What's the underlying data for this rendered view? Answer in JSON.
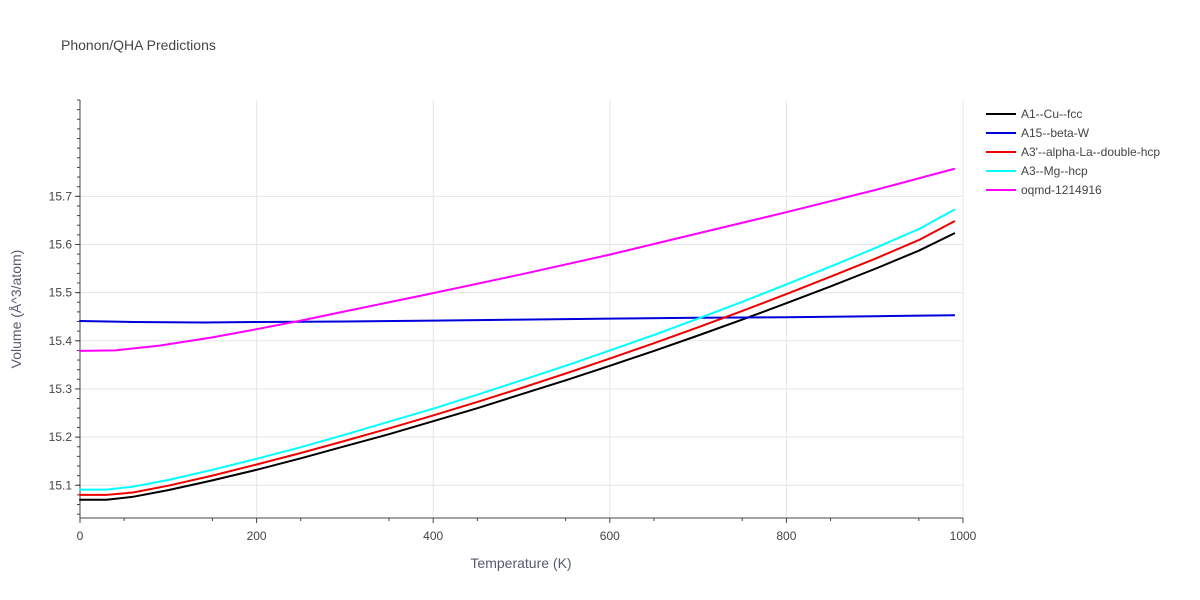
{
  "chart_data": {
    "type": "line",
    "title": "Phonon/QHA Predictions",
    "xlabel": "Temperature (K)",
    "ylabel": "Volume (Å^3/atom)",
    "xlim": [
      0,
      1000
    ],
    "ylim": [
      15.032,
      15.9
    ],
    "x_ticks": [
      0,
      200,
      400,
      600,
      800,
      1000
    ],
    "y_ticks": [
      15.1,
      15.2,
      15.3,
      15.4,
      15.5,
      15.6,
      15.7
    ],
    "grid": true,
    "legend_position": "top-right",
    "series": [
      {
        "name": "A1--Cu--fcc",
        "color": "#000000",
        "x": [
          0,
          30,
          60,
          100,
          150,
          200,
          250,
          300,
          350,
          400,
          450,
          500,
          550,
          600,
          650,
          700,
          750,
          800,
          850,
          900,
          950,
          990
        ],
        "y": [
          15.07,
          15.07,
          15.076,
          15.09,
          15.11,
          15.132,
          15.156,
          15.181,
          15.206,
          15.233,
          15.26,
          15.289,
          15.318,
          15.348,
          15.379,
          15.411,
          15.444,
          15.478,
          15.513,
          15.549,
          15.587,
          15.623
        ]
      },
      {
        "name": "A15--beta-W",
        "color": "#0000dd",
        "x": [
          0,
          60,
          140,
          200,
          300,
          400,
          500,
          600,
          700,
          800,
          900,
          990
        ],
        "y": [
          15.441,
          15.439,
          15.438,
          15.439,
          15.44,
          15.442,
          15.444,
          15.446,
          15.448,
          15.449,
          15.451,
          15.453
        ]
      },
      {
        "name": "A3'--alpha-La--double-hcp",
        "color": "#ee0000",
        "x": [
          0,
          30,
          60,
          100,
          150,
          200,
          250,
          300,
          350,
          400,
          450,
          500,
          550,
          600,
          650,
          700,
          750,
          800,
          850,
          900,
          950,
          990
        ],
        "y": [
          15.08,
          15.08,
          15.085,
          15.099,
          15.12,
          15.143,
          15.167,
          15.192,
          15.218,
          15.245,
          15.273,
          15.302,
          15.332,
          15.363,
          15.395,
          15.428,
          15.462,
          15.497,
          15.533,
          15.57,
          15.609,
          15.648
        ]
      },
      {
        "name": "A3--Mg--hcp",
        "color": "#00ffff",
        "x": [
          0,
          30,
          60,
          100,
          150,
          200,
          250,
          300,
          350,
          400,
          450,
          500,
          550,
          600,
          650,
          700,
          750,
          800,
          850,
          900,
          950,
          990
        ],
        "y": [
          15.091,
          15.091,
          15.097,
          15.111,
          15.132,
          15.155,
          15.179,
          15.205,
          15.232,
          15.259,
          15.288,
          15.318,
          15.348,
          15.38,
          15.412,
          15.446,
          15.481,
          15.517,
          15.554,
          15.592,
          15.632,
          15.672
        ]
      },
      {
        "name": "oqmd-1214916",
        "color": "#ff00ff",
        "x": [
          0,
          40,
          90,
          150,
          200,
          250,
          300,
          400,
          500,
          600,
          700,
          800,
          900,
          990
        ],
        "y": [
          15.379,
          15.38,
          15.39,
          15.407,
          15.424,
          15.442,
          15.461,
          15.499,
          15.538,
          15.579,
          15.623,
          15.667,
          15.713,
          15.757
        ]
      }
    ]
  }
}
